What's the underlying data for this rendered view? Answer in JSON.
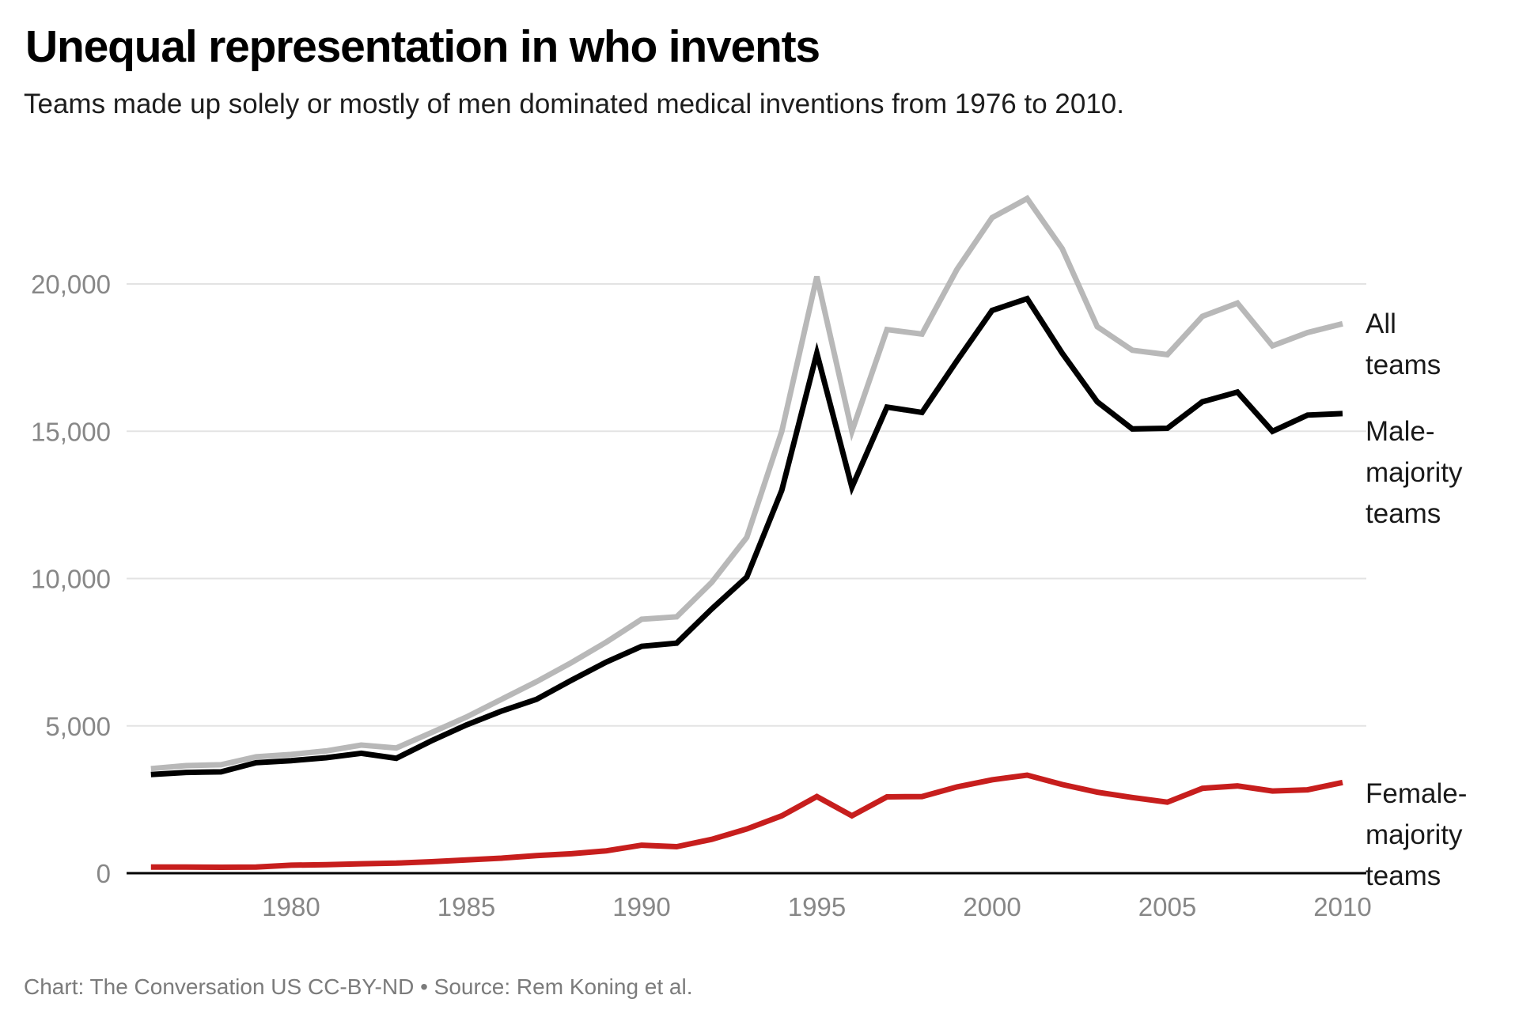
{
  "header": {
    "title": "Unequal representation in who invents",
    "subtitle": "Teams made up solely or mostly of men dominated medical inventions from 1976 to 2010."
  },
  "footer": {
    "credit": "Chart: The Conversation US CC-BY-ND • Source: Rem Koning et al."
  },
  "colors": {
    "all_teams_line": "#b8b8b8",
    "male_majority_line": "#000000",
    "female_majority_line": "#c71e1d",
    "gridline": "#e3e3e3",
    "axis_line": "#000000",
    "tick_label": "#878787"
  },
  "chart_data": {
    "type": "line",
    "title": "Unequal representation in who invents",
    "subtitle": "Teams made up solely or mostly of men dominated medical inventions from 1976 to 2010.",
    "xlabel": "",
    "ylabel": "",
    "grid": "horizontal",
    "legend_position": "right-edge-annotations",
    "xlim": [
      1976,
      2010
    ],
    "ylim": [
      0,
      23000
    ],
    "x": [
      1976,
      1977,
      1978,
      1979,
      1980,
      1981,
      1982,
      1983,
      1984,
      1985,
      1986,
      1987,
      1988,
      1989,
      1990,
      1991,
      1992,
      1993,
      1994,
      1995,
      1996,
      1997,
      1998,
      1999,
      2000,
      2001,
      2002,
      2003,
      2004,
      2005,
      2006,
      2007,
      2008,
      2009,
      2010
    ],
    "series": [
      {
        "key": "all",
        "name": "All teams",
        "color": "#b8b8b8",
        "values": [
          3550,
          3650,
          3680,
          3950,
          4030,
          4150,
          4350,
          4250,
          4770,
          5300,
          5900,
          6500,
          7150,
          7850,
          8620,
          8700,
          9870,
          11400,
          15000,
          20250,
          15000,
          18450,
          18300,
          20500,
          22250,
          22900,
          21200,
          18550,
          17750,
          17600,
          18900,
          19350,
          17900,
          18350,
          18650
        ]
      },
      {
        "key": "male",
        "name": "Male-majority teams",
        "color": "#000000",
        "values": [
          3350,
          3420,
          3440,
          3750,
          3820,
          3920,
          4070,
          3900,
          4490,
          5030,
          5500,
          5900,
          6550,
          7170,
          7700,
          7810,
          8970,
          10050,
          13000,
          17650,
          13100,
          15820,
          15640,
          17400,
          19100,
          19500,
          17650,
          16000,
          15080,
          15100,
          16000,
          16330,
          15000,
          15550,
          15600
        ]
      },
      {
        "key": "female",
        "name": "Female-majority teams",
        "color": "#c71e1d",
        "values": [
          210,
          210,
          200,
          210,
          270,
          290,
          320,
          340,
          390,
          450,
          510,
          600,
          660,
          760,
          950,
          900,
          1150,
          1500,
          1950,
          2600,
          1950,
          2590,
          2600,
          2930,
          3170,
          3330,
          3010,
          2750,
          2570,
          2410,
          2880,
          2960,
          2790,
          2830,
          3080
        ]
      }
    ],
    "yticks": [
      {
        "value": 0,
        "label": "0"
      },
      {
        "value": 5000,
        "label": "5,000"
      },
      {
        "value": 10000,
        "label": "10,000"
      },
      {
        "value": 15000,
        "label": "15,000"
      },
      {
        "value": 20000,
        "label": "20,000"
      }
    ],
    "xticks": [
      {
        "value": 1980,
        "label": "1980"
      },
      {
        "value": 1985,
        "label": "1985"
      },
      {
        "value": 1990,
        "label": "1990"
      },
      {
        "value": 1995,
        "label": "1995"
      },
      {
        "value": 2000,
        "label": "2000"
      },
      {
        "value": 2005,
        "label": "2005"
      },
      {
        "value": 2010,
        "label": "2010"
      }
    ],
    "annotations": [
      {
        "key": "all",
        "lines": [
          "All",
          "teams"
        ]
      },
      {
        "key": "male",
        "lines": [
          "Male-",
          "majority",
          "teams"
        ]
      },
      {
        "key": "female",
        "lines": [
          "Female-",
          "majority",
          "teams"
        ]
      }
    ]
  }
}
